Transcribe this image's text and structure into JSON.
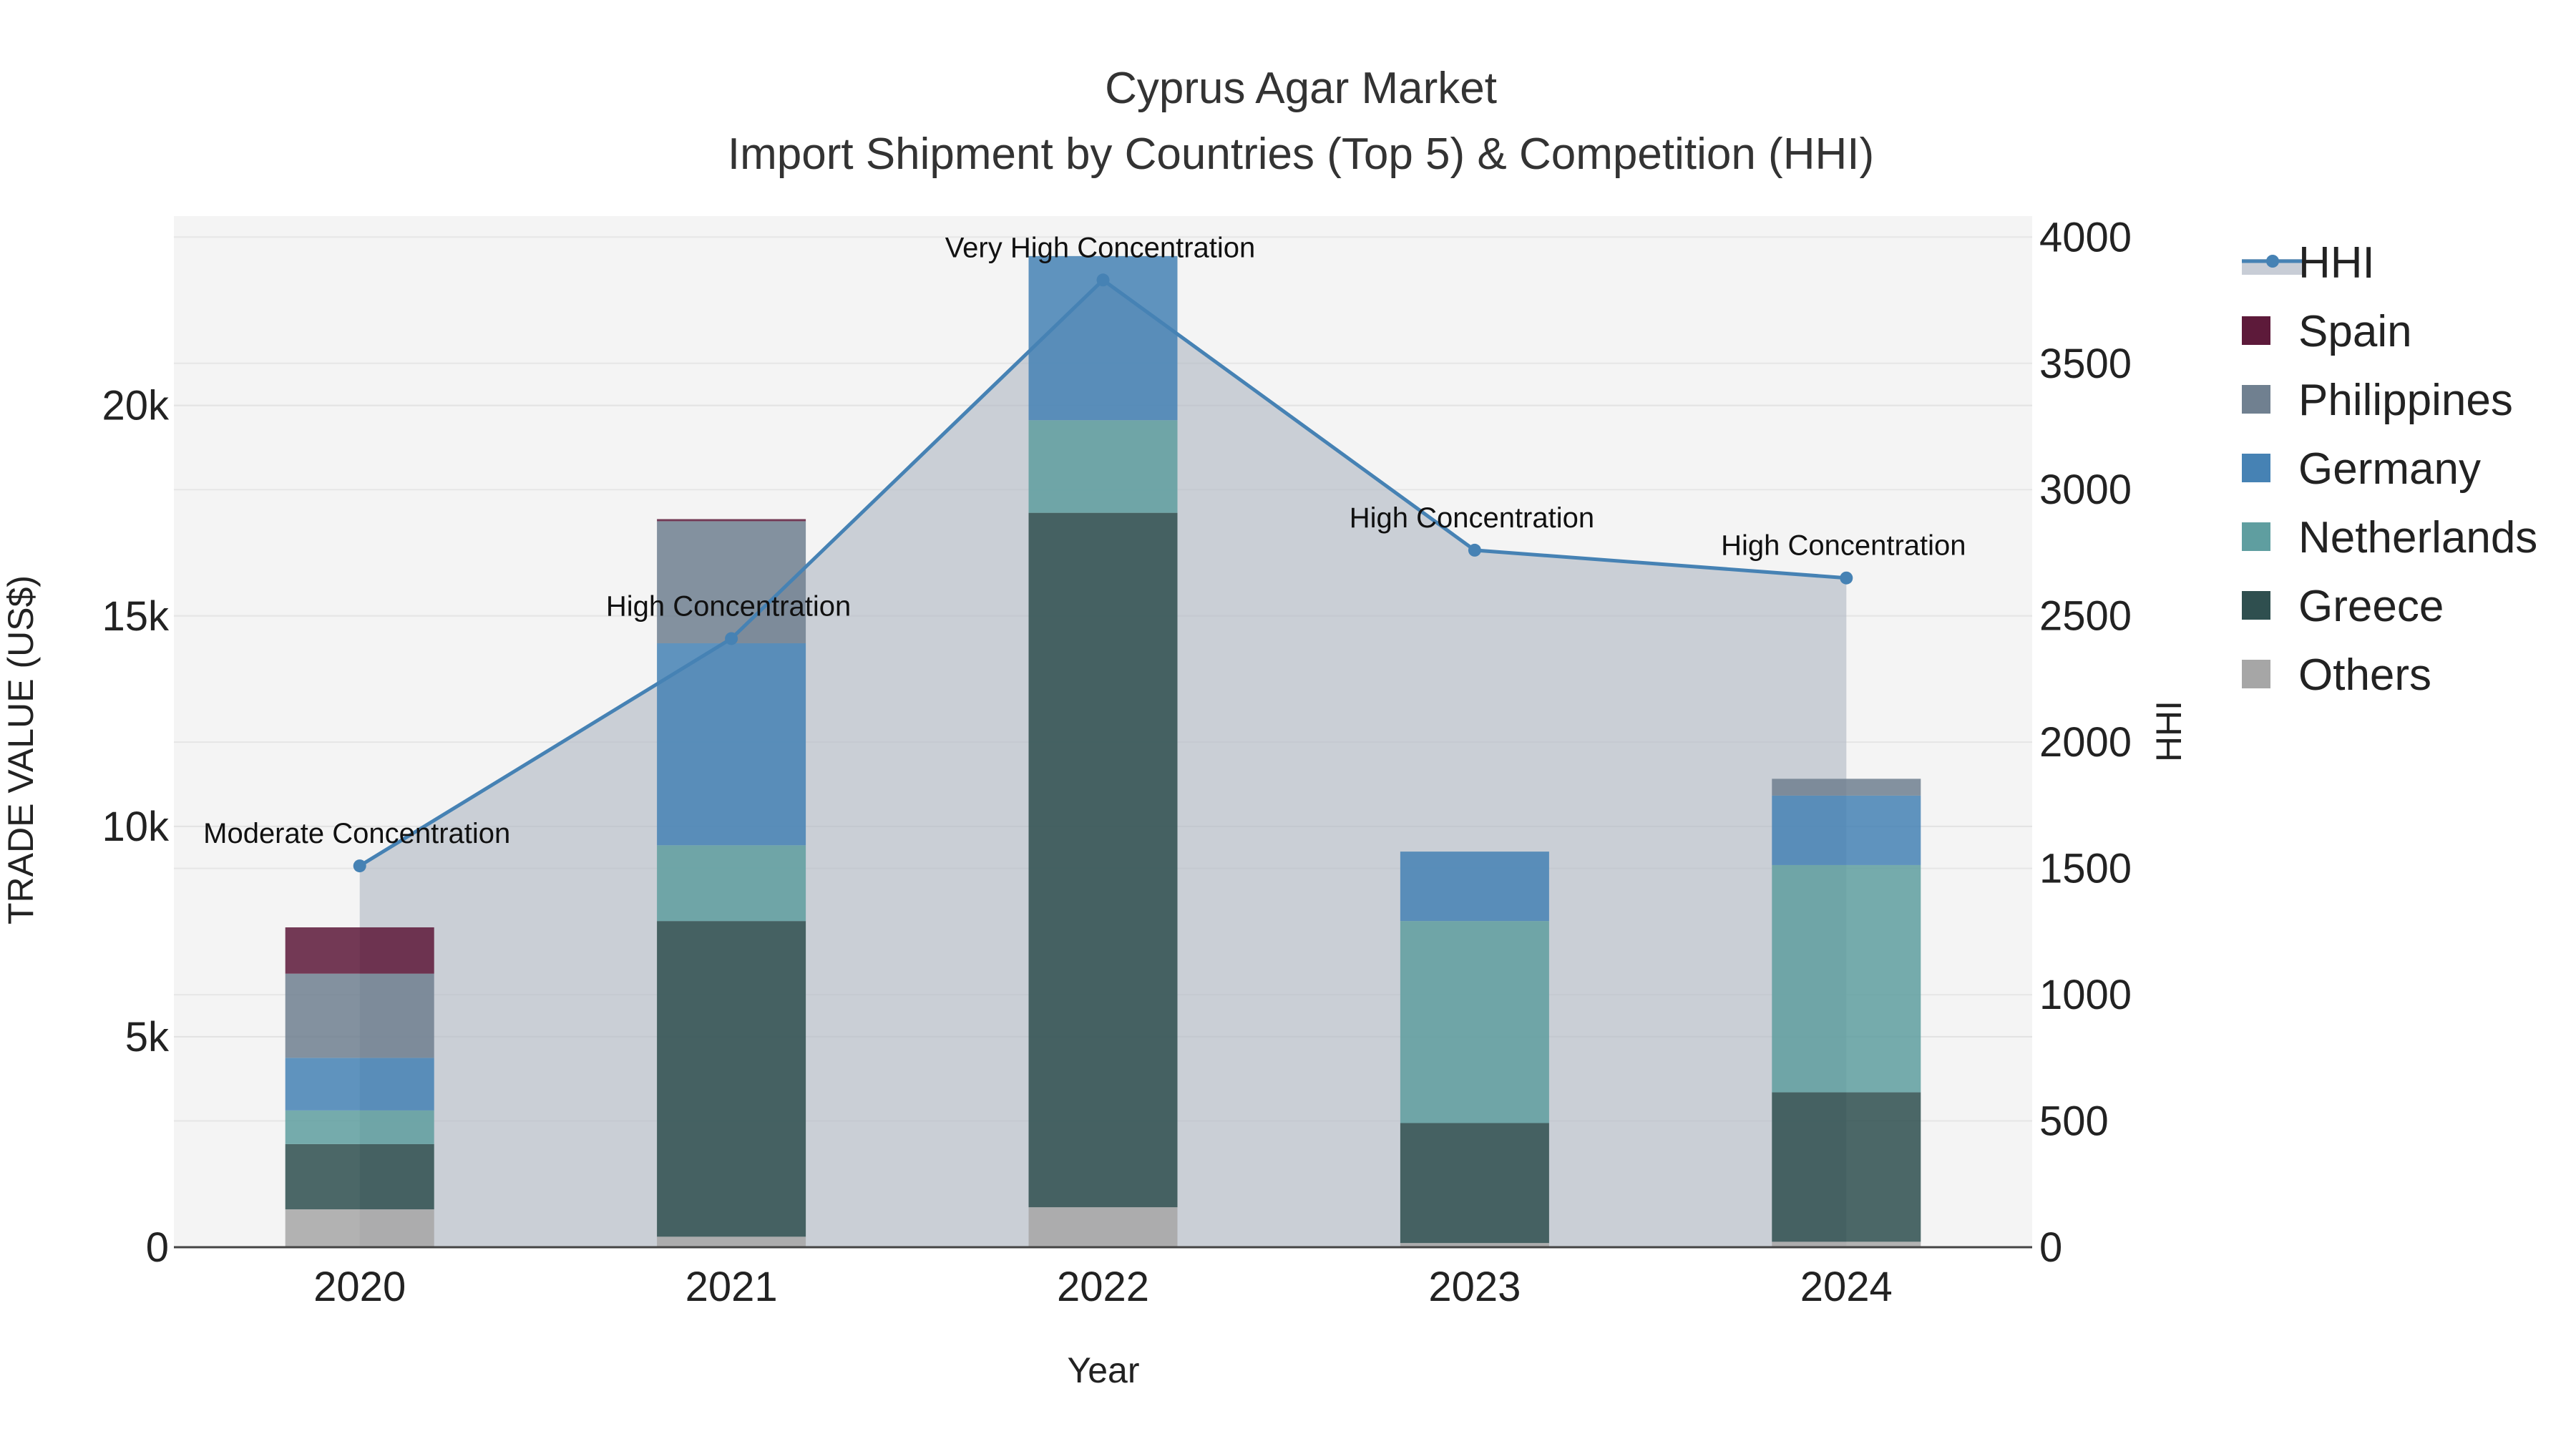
{
  "chart_data": {
    "type": "bar",
    "title": "Cyprus Agar Market",
    "subtitle": "Import Shipment by Countries (Top 5) & Competition (HHI)",
    "xlabel": "Year",
    "ylabel": "TRADE VALUE (US$)",
    "y2label": "HHI",
    "categories": [
      "2020",
      "2021",
      "2022",
      "2023",
      "2024"
    ],
    "ylim": [
      0,
      24500
    ],
    "y2lim": [
      0,
      4083
    ],
    "yticks": [
      0,
      5000,
      10000,
      15000,
      20000
    ],
    "yticklabels": [
      "0",
      "5k",
      "10k",
      "15k",
      "20k"
    ],
    "y2ticks": [
      0,
      500,
      1000,
      1500,
      2000,
      2500,
      3000,
      3500,
      4000
    ],
    "y2ticklabels": [
      "0",
      "500",
      "1000",
      "1500",
      "2000",
      "2500",
      "3000",
      "3500",
      "4000"
    ],
    "series": [
      {
        "name": "Others",
        "color": "#a6a6a6",
        "values": [
          900,
          250,
          950,
          100,
          130
        ]
      },
      {
        "name": "Greece",
        "color": "#2f4f4f",
        "values": [
          1550,
          7500,
          16500,
          2850,
          3550
        ]
      },
      {
        "name": "Netherlands",
        "color": "#5f9ea0",
        "values": [
          800,
          1800,
          2200,
          4800,
          5400
        ]
      },
      {
        "name": "Germany",
        "color": "#4682b4",
        "values": [
          1250,
          4800,
          3900,
          1650,
          1650
        ]
      },
      {
        "name": "Philippines",
        "color": "#708090",
        "values": [
          2000,
          2900,
          0,
          0,
          400
        ]
      },
      {
        "name": "Spain",
        "color": "#5d1a3a",
        "values": [
          1100,
          50,
          0,
          0,
          0
        ]
      }
    ],
    "hhi": {
      "name": "HHI",
      "color": "#4682b4",
      "values": [
        1510,
        2410,
        3830,
        2760,
        2650
      ],
      "labels": [
        "Moderate Concentration",
        "High Concentration",
        "Very High Concentration",
        "High Concentration",
        "High Concentration"
      ]
    },
    "legend": [
      "HHI",
      "Spain",
      "Philippines",
      "Germany",
      "Netherlands",
      "Greece",
      "Others"
    ]
  }
}
